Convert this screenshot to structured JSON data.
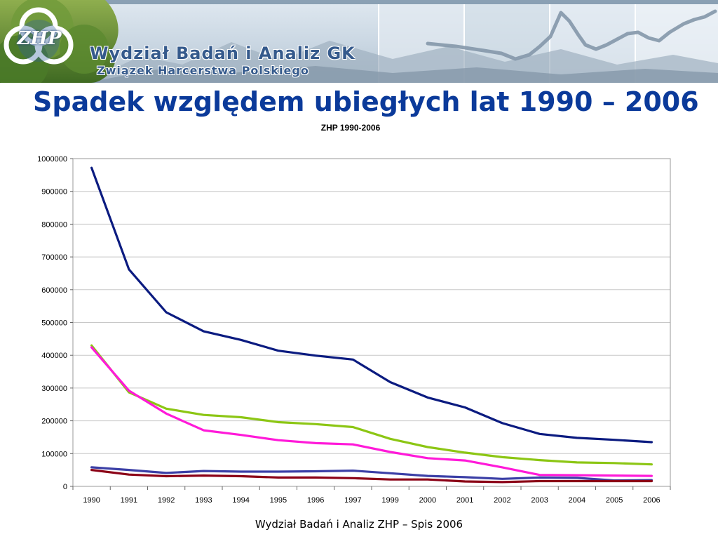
{
  "header": {
    "org_title": "Wydział Badań i Analiz GK",
    "org_subtitle": "Związek Harcerstwa Polskiego",
    "logo_text": "ZHP"
  },
  "slide": {
    "title": "Spadek względem ubiegłych lat 1990 – 2006"
  },
  "footer": {
    "text": "Wydział Badań i Analiz ZHP – Spis 2006"
  },
  "chart_data": {
    "type": "line",
    "title": "ZHP 1990-2006",
    "xlabel": "",
    "ylabel": "",
    "categories": [
      "1990",
      "1991",
      "1992",
      "1993",
      "1994",
      "1995",
      "1996",
      "1997",
      "1999",
      "2000",
      "2001",
      "2002",
      "2003",
      "2004",
      "2005",
      "2006"
    ],
    "ylim": [
      0,
      1000000
    ],
    "yticks": [
      0,
      100000,
      200000,
      300000,
      400000,
      500000,
      600000,
      700000,
      800000,
      900000,
      1000000
    ],
    "grid": true,
    "legend": "none",
    "series": [
      {
        "color": "#0b1b80",
        "values": [
          972000,
          662000,
          531000,
          473000,
          447000,
          414000,
          399000,
          387000,
          318000,
          271000,
          241000,
          193000,
          160000,
          148000,
          142000,
          135000
        ]
      },
      {
        "color": "#8cc614",
        "values": [
          430000,
          287000,
          237000,
          218000,
          211000,
          196000,
          190000,
          181000,
          145000,
          120000,
          103000,
          89000,
          80000,
          73000,
          71000,
          67000
        ]
      },
      {
        "color": "#ff1ad9",
        "values": [
          424000,
          292000,
          222000,
          171000,
          157000,
          141000,
          132000,
          128000,
          105000,
          86000,
          79000,
          58000,
          35000,
          34000,
          33000,
          32000
        ]
      },
      {
        "color": "#3b3fa6",
        "values": [
          58000,
          50000,
          41000,
          47000,
          45000,
          45000,
          46000,
          48000,
          40000,
          32000,
          28000,
          23000,
          27000,
          26000,
          18000,
          19000
        ]
      },
      {
        "color": "#8b0016",
        "values": [
          50000,
          36000,
          31000,
          33000,
          31000,
          27000,
          27000,
          25000,
          21000,
          21000,
          15000,
          13000,
          16000,
          16000,
          16000,
          16000
        ]
      }
    ]
  },
  "colors": {
    "title": "#0b3a9a",
    "banner_text": "#355a8c",
    "plot_border": "#9a9a9a",
    "grid": "#c8c8c8"
  }
}
